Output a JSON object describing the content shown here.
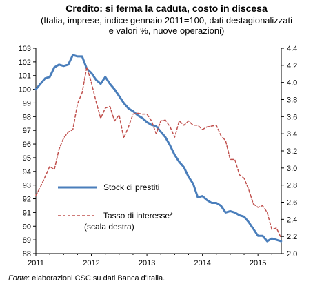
{
  "chart_data": {
    "type": "line",
    "title": "Credito: si ferma la caduta, costo in discesa",
    "subtitle_lines": [
      "(Italia, imprese, indice gennaio 2011=100, dati destagionalizzati",
      "e valori %, nuove operazioni)"
    ],
    "x_ticks": [
      "2011",
      "2012",
      "2013",
      "2014",
      "2015"
    ],
    "y_left_ticks": [
      "88",
      "89",
      "90",
      "91",
      "92",
      "93",
      "94",
      "95",
      "96",
      "97",
      "98",
      "99",
      "100",
      "101",
      "102",
      "103"
    ],
    "y_right_ticks": [
      "2.0",
      "2.2",
      "2.4",
      "2.6",
      "2.8",
      "3.0",
      "3.2",
      "3.4",
      "3.6",
      "3.8",
      "4.0",
      "4.2",
      "4.4"
    ],
    "ylim_left": [
      88,
      103
    ],
    "ylim_right": [
      2.0,
      4.4
    ],
    "xlim": [
      2011.0,
      2015.42
    ],
    "series": [
      {
        "name": "Stock di prestiti",
        "axis": "left",
        "color": "#4a7ebb",
        "x": [
          2011.0,
          2011.083,
          2011.167,
          2011.25,
          2011.333,
          2011.417,
          2011.5,
          2011.583,
          2011.667,
          2011.75,
          2011.833,
          2011.917,
          2012.0,
          2012.083,
          2012.167,
          2012.25,
          2012.333,
          2012.417,
          2012.5,
          2012.583,
          2012.667,
          2012.75,
          2012.833,
          2012.917,
          2013.0,
          2013.083,
          2013.167,
          2013.25,
          2013.333,
          2013.417,
          2013.5,
          2013.583,
          2013.667,
          2013.75,
          2013.833,
          2013.917,
          2014.0,
          2014.083,
          2014.167,
          2014.25,
          2014.333,
          2014.417,
          2014.5,
          2014.583,
          2014.667,
          2014.75,
          2014.833,
          2014.917,
          2015.0,
          2015.083,
          2015.167,
          2015.25,
          2015.333,
          2015.417
        ],
        "values": [
          100.0,
          100.4,
          100.8,
          100.9,
          101.6,
          101.8,
          101.7,
          101.8,
          102.5,
          102.4,
          102.4,
          101.5,
          101.2,
          100.7,
          100.4,
          100.9,
          100.4,
          100.0,
          99.5,
          99.0,
          98.6,
          98.4,
          98.1,
          97.9,
          97.6,
          97.4,
          97.3,
          96.9,
          96.5,
          95.9,
          95.2,
          94.7,
          94.3,
          93.6,
          93.1,
          92.1,
          92.2,
          91.9,
          91.7,
          91.7,
          91.5,
          91.0,
          91.1,
          91.0,
          90.8,
          90.7,
          90.3,
          89.8,
          89.3,
          89.3,
          88.9,
          89.1,
          89.0,
          88.9
        ]
      },
      {
        "name": "Tasso di interesse*",
        "name_line2": "(scala destra)",
        "axis": "right",
        "color": "#c0504d",
        "x": [
          2011.0,
          2011.083,
          2011.167,
          2011.25,
          2011.333,
          2011.417,
          2011.5,
          2011.583,
          2011.667,
          2011.75,
          2011.833,
          2011.917,
          2012.0,
          2012.083,
          2012.167,
          2012.25,
          2012.333,
          2012.417,
          2012.5,
          2012.583,
          2012.667,
          2012.75,
          2012.833,
          2012.917,
          2013.0,
          2013.083,
          2013.167,
          2013.25,
          2013.333,
          2013.417,
          2013.5,
          2013.583,
          2013.667,
          2013.75,
          2013.833,
          2013.917,
          2014.0,
          2014.083,
          2014.167,
          2014.25,
          2014.333,
          2014.417,
          2014.5,
          2014.583,
          2014.667,
          2014.75,
          2014.833,
          2014.917,
          2015.0,
          2015.083,
          2015.167,
          2015.25,
          2015.333,
          2015.417
        ],
        "values": [
          2.68,
          2.78,
          2.9,
          3.02,
          2.98,
          3.22,
          3.35,
          3.42,
          3.45,
          3.75,
          3.88,
          4.18,
          4.0,
          3.78,
          3.58,
          3.7,
          3.72,
          3.55,
          3.62,
          3.35,
          3.48,
          3.63,
          3.64,
          3.63,
          3.63,
          3.55,
          3.4,
          3.55,
          3.56,
          3.48,
          3.36,
          3.55,
          3.5,
          3.55,
          3.5,
          3.5,
          3.45,
          3.48,
          3.49,
          3.5,
          3.38,
          3.32,
          3.1,
          3.1,
          2.92,
          2.88,
          2.75,
          2.58,
          2.54,
          2.56,
          2.48,
          2.28,
          2.3,
          2.18
        ]
      }
    ],
    "legend_placement": "bottom-left inside plot",
    "grid": false
  },
  "source": {
    "label": "Fonte",
    "text": ": elaborazioni CSC su dati Banca d'Italia."
  }
}
